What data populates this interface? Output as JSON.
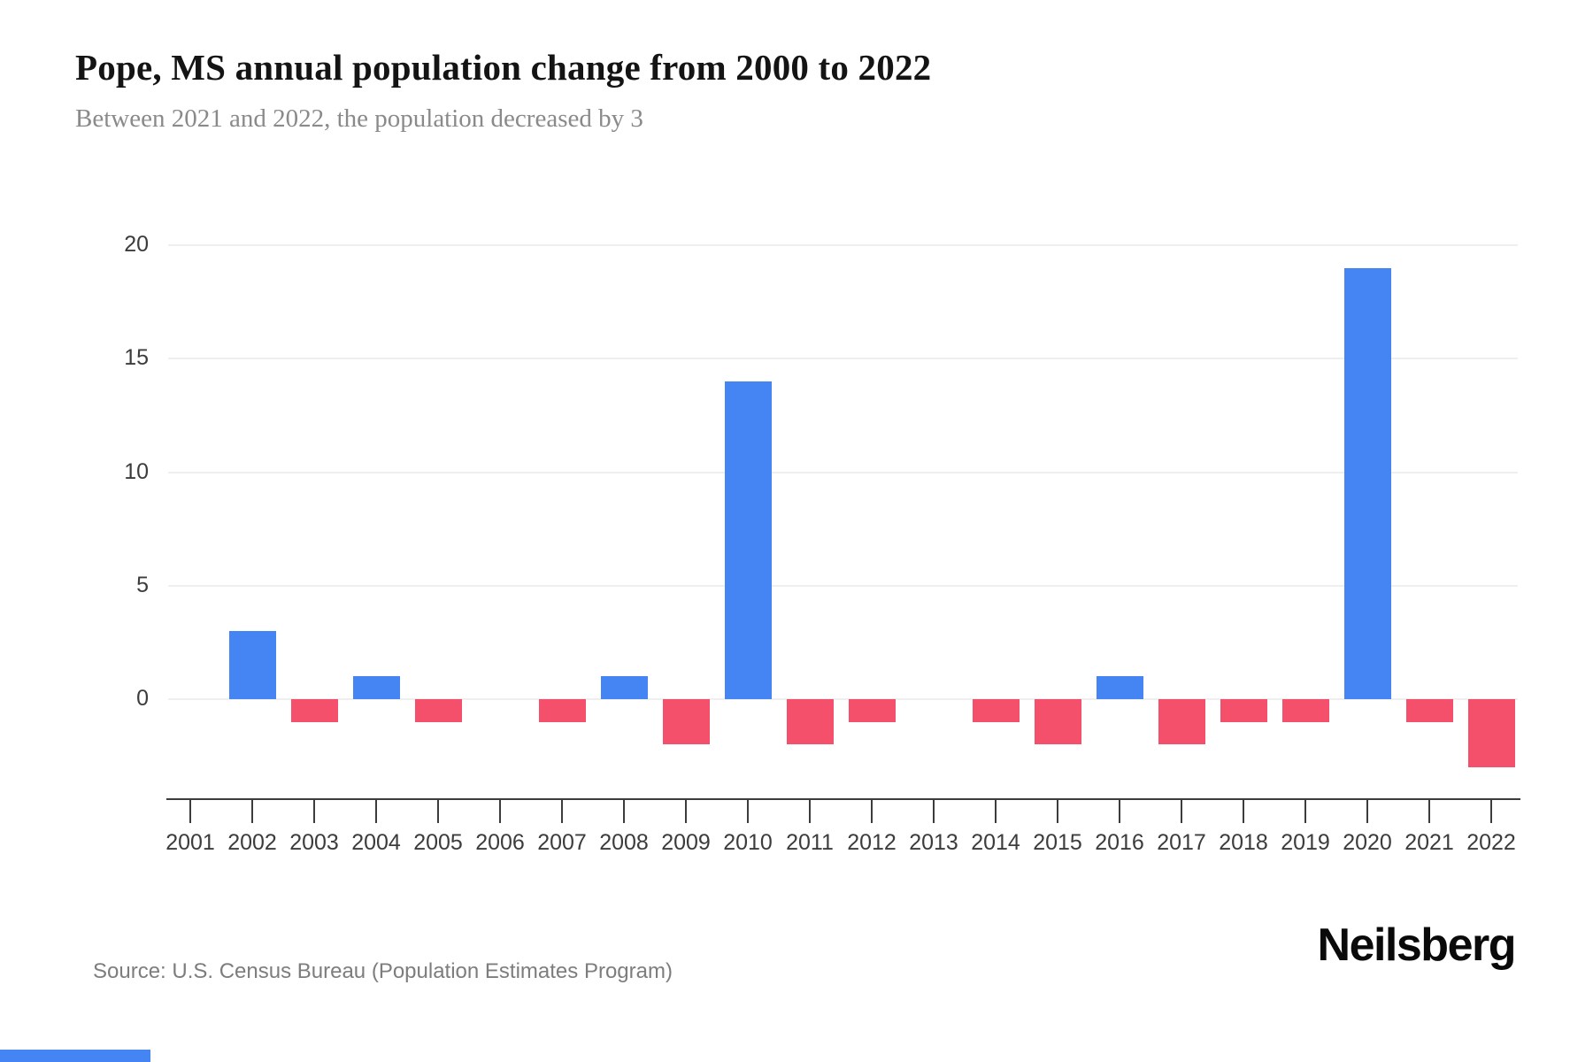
{
  "header": {
    "title": "Pope, MS annual population change from 2000 to 2022",
    "subtitle": "Between 2021 and 2022, the population decreased by 3"
  },
  "footer": {
    "source": "Source: U.S. Census Bureau (Population Estimates Program)",
    "brand": "Neilsberg"
  },
  "chart_data": {
    "type": "bar",
    "title": "Pope, MS annual population change from 2000 to 2022",
    "subtitle": "Between 2021 and 2022, the population decreased by 3",
    "categories": [
      "2001",
      "2002",
      "2003",
      "2004",
      "2005",
      "2006",
      "2007",
      "2008",
      "2009",
      "2010",
      "2011",
      "2012",
      "2013",
      "2014",
      "2015",
      "2016",
      "2017",
      "2018",
      "2019",
      "2020",
      "2021",
      "2022"
    ],
    "values": [
      0,
      3,
      -1,
      1,
      -1,
      0,
      -1,
      1,
      -2,
      14,
      -2,
      -1,
      0,
      -1,
      -2,
      1,
      -2,
      -1,
      -1,
      19,
      -1,
      -3
    ],
    "xlabel": "",
    "ylabel": "",
    "yticks": [
      0,
      5,
      10,
      15,
      20
    ],
    "ylim": [
      -3,
      20
    ],
    "grid": "horizontal",
    "legend": "none",
    "positive_color": "#4484f3",
    "negative_color": "#f4506c"
  }
}
